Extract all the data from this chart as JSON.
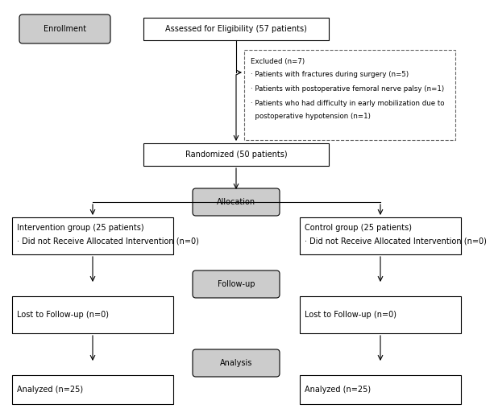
{
  "bg_color": "#ffffff",
  "enrollment_label": "Enrollment",
  "eligibility_text": "Assessed for Eligibility (57 patients)",
  "excluded_title": "Excluded (n=7)",
  "excluded_line1": "· Patients with fractures during surgery (n=5)",
  "excluded_line2": "· Patients with postoperative femoral nerve palsy (n=1)",
  "excluded_line3": "· Patients who had difficulty in early mobilization due to",
  "excluded_line4": "  postoperative hypotension (n=1)",
  "randomized_text": "Randomized (50 patients)",
  "allocation_text": "Allocation",
  "intervention_line1": "Intervention group (25 patients)",
  "intervention_line2": "· Did not Receive Allocated Intervention (n=0)",
  "control_line1": "Control group (25 patients)",
  "control_line2": "· Did not Receive Allocated Intervention (n=0)",
  "followup_text": "Follow-up",
  "lost_left": "Lost to Follow-up (n=0)",
  "lost_right": "Lost to Follow-up (n=0)",
  "analysis_text": "Analysis",
  "analyzed_left": "Analyzed (n=25)",
  "analyzed_right": "Analyzed (n=25)",
  "shade_color": "#cccccc",
  "text_color": "#000000",
  "fontsize": 7,
  "small_fontsize": 6.2
}
